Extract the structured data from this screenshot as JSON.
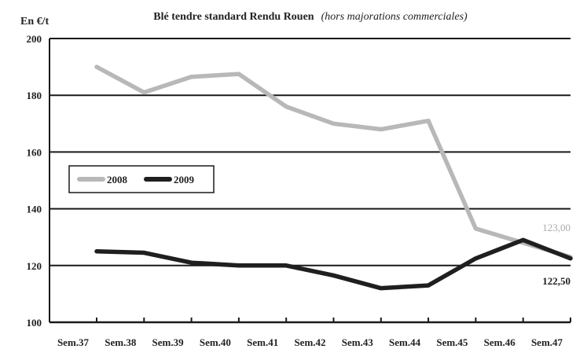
{
  "chart_data": {
    "type": "line",
    "title": "Blé tendre standard Rendu Rouen",
    "subtitle": "(hors majorations commerciales)",
    "ylabel": "En €/t",
    "xlabel": "",
    "ylim": [
      100,
      200
    ],
    "yticks": [
      100,
      120,
      140,
      160,
      180,
      200
    ],
    "grid": true,
    "legend_position": "middle-left",
    "categories": [
      "Sem.37",
      "Sem.38",
      "Sem.39",
      "Sem.40",
      "Sem.41",
      "Sem.42",
      "Sem.43",
      "Sem.44",
      "Sem.45",
      "Sem.46",
      "Sem.47"
    ],
    "series": [
      {
        "name": "2008",
        "color": "#b8b8b8",
        "values": [
          190,
          181,
          186.5,
          187.5,
          176,
          170,
          168,
          171,
          133,
          128,
          123
        ]
      },
      {
        "name": "2009",
        "color": "#1f1f1f",
        "values": [
          125,
          124.5,
          121,
          120,
          120,
          116.5,
          112,
          113,
          122.5,
          129,
          122.5
        ]
      }
    ],
    "annotations": [
      {
        "series": "2008",
        "text": "123,00"
      },
      {
        "series": "2009",
        "text": "122,50"
      }
    ]
  }
}
